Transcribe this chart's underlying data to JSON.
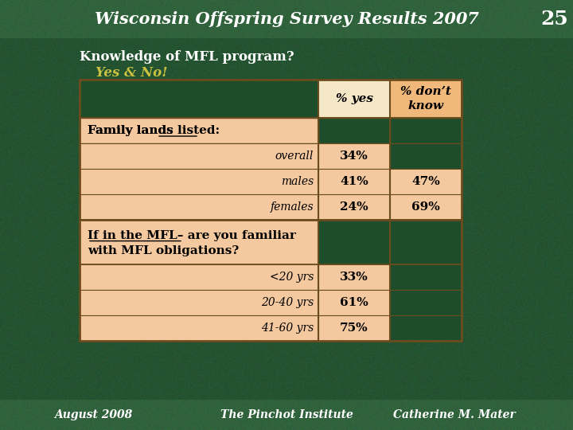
{
  "title": "Wisconsin Offspring Survey Results 2007",
  "slide_number": "25",
  "bg_color": "#1e4d2b",
  "header_bg": "#2a5c36",
  "cell_bg": "#f5c9a0",
  "yes_header_bg": "#f5e8c8",
  "dk_header_bg": "#f0b87a",
  "dark_cell_bg": "#1e4d2b",
  "question_line1": "Knowledge of MFL program?",
  "question_line2": "Yes & No!",
  "col_header_yes": "% yes",
  "col_header_dk": "% don’t\nknow",
  "section1_header": "Family lands listed:",
  "section1_rows": [
    {
      "label": "overall",
      "yes": "34%",
      "dont_know": ""
    },
    {
      "label": "males",
      "yes": "41%",
      "dont_know": "47%"
    },
    {
      "label": "females",
      "yes": "24%",
      "dont_know": "69%"
    }
  ],
  "section2_header_line1": "If in the MFL– are you familiar",
  "section2_header_line2": "with MFL obligations?",
  "section2_rows": [
    {
      "label": "<20 yrs",
      "yes": "33%"
    },
    {
      "label": "20-40 yrs",
      "yes": "61%"
    },
    {
      "label": "41-60 yrs",
      "yes": "75%"
    }
  ],
  "footer_left": "August 2008",
  "footer_center": "The Pinchot Institute",
  "footer_right": "Catherine M. Mater"
}
